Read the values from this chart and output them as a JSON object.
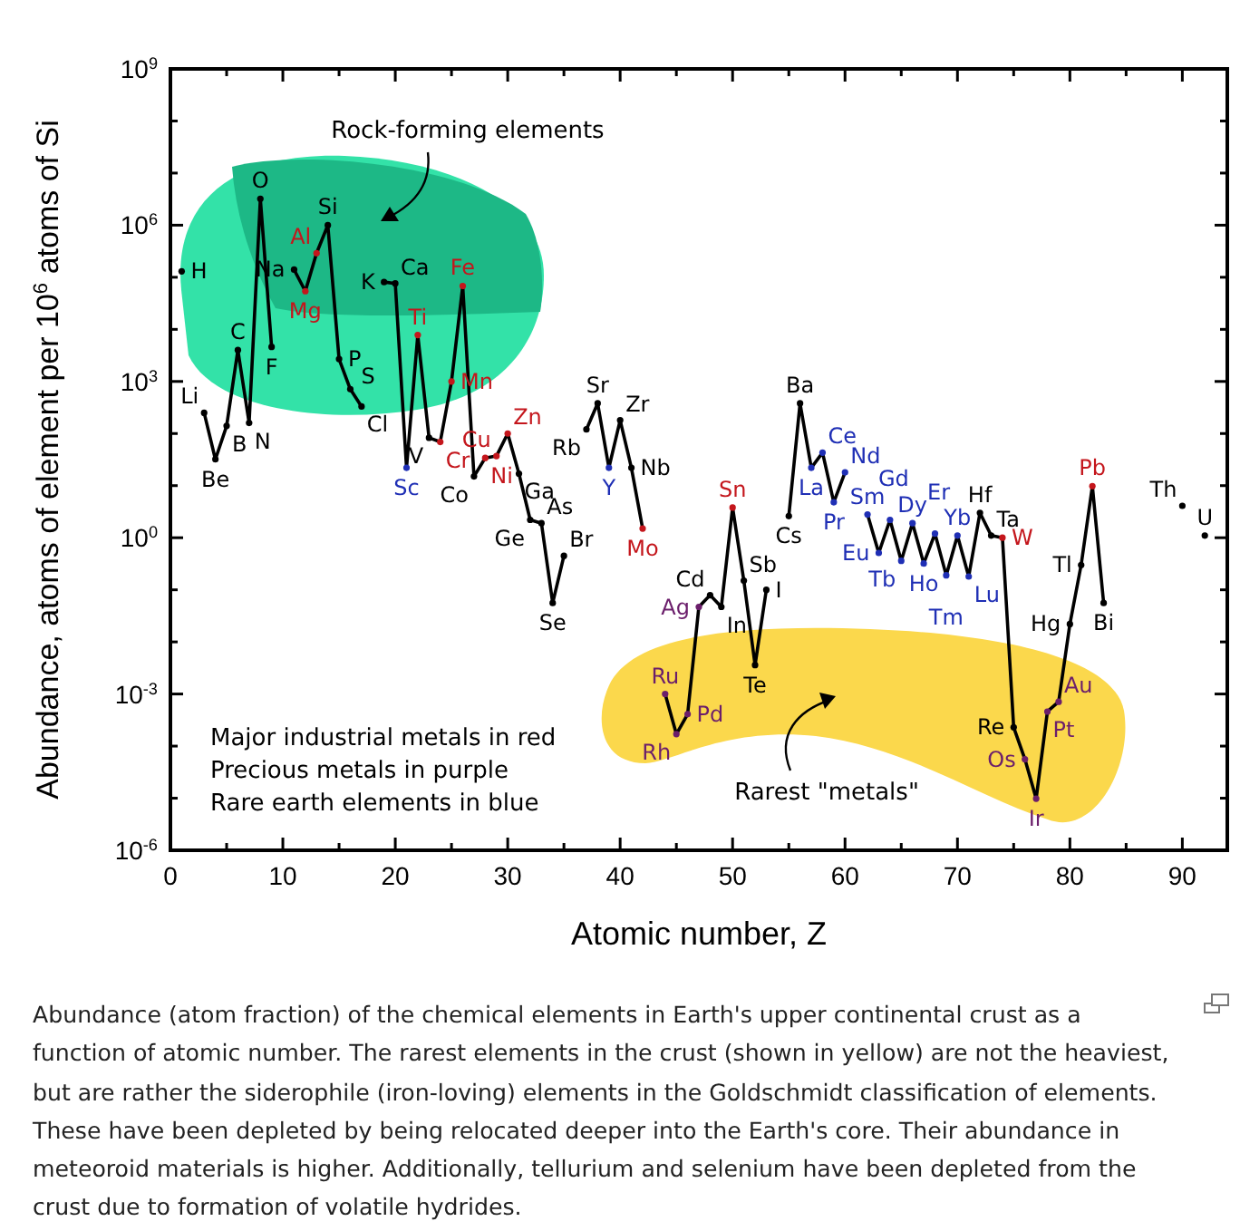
{
  "chart_data": {
    "type": "line",
    "xlabel": "Atomic number, Z",
    "ylabel": "Abundance, atoms of element per 10$^{6}$ atoms of Si",
    "log": "y",
    "xlim": [
      0,
      94
    ],
    "ylim": [
      1e-06,
      1000000000.0
    ],
    "xticks": [
      0,
      {
        "value": 5,
        "label": null
      },
      10,
      {
        "value": 15,
        "label": null
      },
      20,
      {
        "value": 25,
        "label": null
      },
      30,
      {
        "value": 35,
        "label": null
      },
      40,
      {
        "value": 45,
        "label": null
      },
      50,
      {
        "value": 55,
        "label": null
      },
      60,
      {
        "value": 65,
        "label": null
      },
      70,
      {
        "value": 75,
        "label": null
      },
      80,
      {
        "value": 85,
        "label": null
      },
      90
    ],
    "yticks": [
      {
        "value": 1e-06,
        "label": "10$^{-6}$"
      },
      {
        "value": 1e-05,
        "label": null
      },
      {
        "value": 0.0001,
        "label": null
      },
      {
        "value": 0.001,
        "label": "10$^{-3}$"
      },
      {
        "value": 0.01,
        "label": null
      },
      {
        "value": 0.1,
        "label": null
      },
      {
        "value": 1,
        "label": "10$^{0}$"
      },
      {
        "value": 10,
        "label": null
      },
      {
        "value": 100,
        "label": null
      },
      {
        "value": 1000,
        "label": "10$^{3}$"
      },
      {
        "value": 10000.0,
        "label": null
      },
      {
        "value": 100000.0,
        "label": null
      },
      {
        "value": 1000000.0,
        "label": "10$^{6}$"
      },
      {
        "value": 10000000.0,
        "label": null
      },
      {
        "value": 100000000.0,
        "label": null
      },
      {
        "value": 1000000000.0,
        "label": "10$^{9}$"
      }
    ],
    "marker": "circle",
    "line_style": "solid",
    "grid": false,
    "x": [
      1,
      2,
      3,
      4,
      5,
      6,
      7,
      8,
      9,
      10,
      11,
      12,
      13,
      14,
      15,
      16,
      17,
      18,
      19,
      20,
      21,
      22,
      23,
      24,
      25,
      26,
      27,
      28,
      29,
      30,
      31,
      32,
      33,
      34,
      35,
      36,
      37,
      38,
      39,
      40,
      41,
      42,
      43,
      44,
      45,
      46,
      47,
      48,
      49,
      50,
      51,
      52,
      53,
      54,
      55,
      56,
      57,
      58,
      59,
      60,
      61,
      62,
      63,
      64,
      65,
      66,
      67,
      68,
      69,
      70,
      71,
      72,
      73,
      74,
      75,
      76,
      77,
      78,
      79,
      80,
      81,
      82,
      83,
      84,
      85,
      86,
      87,
      88,
      89,
      90,
      91,
      92
    ],
    "series": [
      {
        "color": "#000000",
        "values": [
          130000.0,
          null,
          250,
          32,
          140,
          4000,
          160,
          3200000.0,
          4600,
          null,
          140000.0,
          54000.0,
          290000.0,
          1000000.0,
          2700,
          710,
          330,
          null,
          81000.0,
          76000.0,
          22,
          7800,
          83,
          69,
          1000,
          68000.0,
          15,
          34,
          37,
          100,
          17,
          2.2,
          1.9,
          0.056,
          0.45,
          null,
          120,
          380,
          22,
          180,
          22,
          1.5,
          null,
          0.001,
          0.00017,
          0.00041,
          0.047,
          0.079,
          0.047,
          3.8,
          0.15,
          0.0036,
          0.1,
          null,
          2.6,
          380,
          22,
          43,
          4.8,
          18,
          null,
          2.8,
          0.51,
          2.2,
          0.36,
          1.9,
          0.32,
          1.2,
          0.19,
          1.1,
          0.18,
          3.0,
          1.1,
          1.0,
          0.00023,
          5.6e-05,
          9.8e-06,
          0.00046,
          0.00071,
          0.022,
          0.3,
          9.8,
          0.056,
          null,
          null,
          null,
          null,
          null,
          null,
          4.1,
          null,
          1.1
        ],
        "value_labels": [
          "H",
          null,
          "Li",
          "Be",
          "B",
          "C",
          "N",
          "O",
          "F",
          null,
          "Na",
          "Mg",
          "Al",
          "Si",
          "P",
          "S",
          "Cl",
          null,
          "K",
          "Ca",
          "Sc",
          "Ti",
          "V",
          "Cr",
          "Mn",
          "Fe",
          "Co",
          "Ni",
          "Cu",
          "Zn",
          "Ga",
          "Ge",
          "As",
          "Se",
          "Br",
          null,
          "Rb",
          "Sr",
          "Y",
          "Zr",
          "Nb",
          "Mo",
          null,
          "Ru",
          "Rh",
          "Pd",
          "Ag",
          "Cd",
          "In",
          "Sn",
          "Sb",
          "Te",
          "I",
          null,
          "Cs",
          "Ba",
          "La",
          "Ce",
          "Pr",
          "Nd",
          null,
          "Sm",
          "Eu",
          "Gd",
          "Tb",
          "Dy",
          "Ho",
          "Er",
          "Tm",
          "Yb",
          "Lu",
          "Hf",
          "Ta",
          "W",
          "Re",
          "Os",
          "Ir",
          "Pt",
          "Au",
          "Hg",
          "Tl",
          "Pb",
          "Bi",
          null,
          null,
          null,
          null,
          null,
          null,
          "Th",
          null,
          "U"
        ],
        "colors": [
          "#000000",
          null,
          "#000000",
          "#000000",
          "#000000",
          "#000000",
          "#000000",
          "#000000",
          "#000000",
          null,
          "#000000",
          "#c4161c",
          "#c4161c",
          "#000000",
          "#000000",
          "#000000",
          "#000000",
          null,
          "#000000",
          "#000000",
          "#1f2fb5",
          "#c4161c",
          "#000000",
          "#c4161c",
          "#c4161c",
          "#c4161c",
          "#000000",
          "#c4161c",
          "#c4161c",
          "#c4161c",
          "#000000",
          "#000000",
          "#000000",
          "#000000",
          "#000000",
          null,
          "#000000",
          "#000000",
          "#1f2fb5",
          "#000000",
          "#000000",
          "#c4161c",
          null,
          "#6b1e6b",
          "#6b1e6b",
          "#6b1e6b",
          "#6b1e6b",
          "#000000",
          "#000000",
          "#c4161c",
          "#000000",
          "#000000",
          "#000000",
          null,
          "#000000",
          "#000000",
          "#1f2fb5",
          "#1f2fb5",
          "#1f2fb5",
          "#1f2fb5",
          null,
          "#1f2fb5",
          "#1f2fb5",
          "#1f2fb5",
          "#1f2fb5",
          "#1f2fb5",
          "#1f2fb5",
          "#1f2fb5",
          "#1f2fb5",
          "#1f2fb5",
          "#1f2fb5",
          "#000000",
          "#000000",
          "#c4161c",
          "#000000",
          "#6b1e6b",
          "#6b1e6b",
          "#6b1e6b",
          "#6b1e6b",
          "#000000",
          "#000000",
          "#c4161c",
          "#000000",
          null,
          null,
          null,
          null,
          null,
          null,
          "#000000",
          null,
          "#000000"
        ]
      }
    ],
    "annotations": [
      "Rock-forming elements",
      "Rarest \"metals\"",
      "Major industrial metals in red",
      "Precious metals in purple",
      "Rare earth elements in blue",
      "Abundance (atom fraction) of the chemical elements in Earth's upper continental crust as a function of atomic number. The rarest elements in the crust (shown in yellow) are not the heaviest, but are rather the siderophile (iron-loving) elements in the Goldschmidt classification of elements. These have been depleted by being relocated deeper into the Earth's core. Their abundance in meteoroid materials is higher. Additionally, tellurium and selenium have been depleted from the crust due to formation of volatile hydrides."
    ]
  }
}
